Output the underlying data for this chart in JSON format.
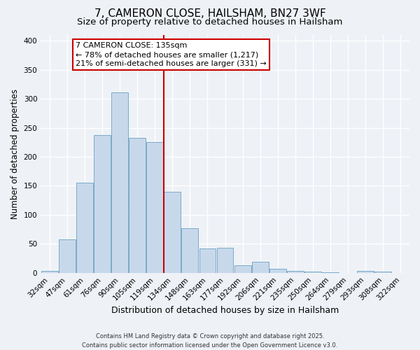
{
  "title": "7, CAMERON CLOSE, HAILSHAM, BN27 3WF",
  "subtitle": "Size of property relative to detached houses in Hailsham",
  "xlabel": "Distribution of detached houses by size in Hailsham",
  "ylabel": "Number of detached properties",
  "categories": [
    "32sqm",
    "47sqm",
    "61sqm",
    "76sqm",
    "90sqm",
    "105sqm",
    "119sqm",
    "134sqm",
    "148sqm",
    "163sqm",
    "177sqm",
    "192sqm",
    "206sqm",
    "221sqm",
    "235sqm",
    "250sqm",
    "264sqm",
    "279sqm",
    "293sqm",
    "308sqm",
    "322sqm"
  ],
  "bar_values": [
    3,
    57,
    155,
    237,
    311,
    233,
    225,
    140,
    77,
    42,
    43,
    13,
    19,
    7,
    3,
    2,
    1,
    0,
    3,
    2,
    0
  ],
  "bar_color": "#c8d8eb",
  "bar_edge_color": "#7aaac8",
  "vline_index": 7,
  "vline_color": "#cc0000",
  "annotation_line1": "7 CAMERON CLOSE: 135sqm",
  "annotation_line2": "← 78% of detached houses are smaller (1,217)",
  "annotation_line3": "21% of semi-detached houses are larger (331) →",
  "ylim": [
    0,
    410
  ],
  "yticks": [
    0,
    50,
    100,
    150,
    200,
    250,
    300,
    350,
    400
  ],
  "background_color": "#eef2f7",
  "grid_color": "#ffffff",
  "footer1": "Contains HM Land Registry data © Crown copyright and database right 2025.",
  "footer2": "Contains public sector information licensed under the Open Government Licence v3.0.",
  "title_fontsize": 11,
  "subtitle_fontsize": 9.5,
  "xlabel_fontsize": 9,
  "ylabel_fontsize": 8.5,
  "tick_fontsize": 7.5,
  "annotation_fontsize": 8,
  "footer_fontsize": 6
}
